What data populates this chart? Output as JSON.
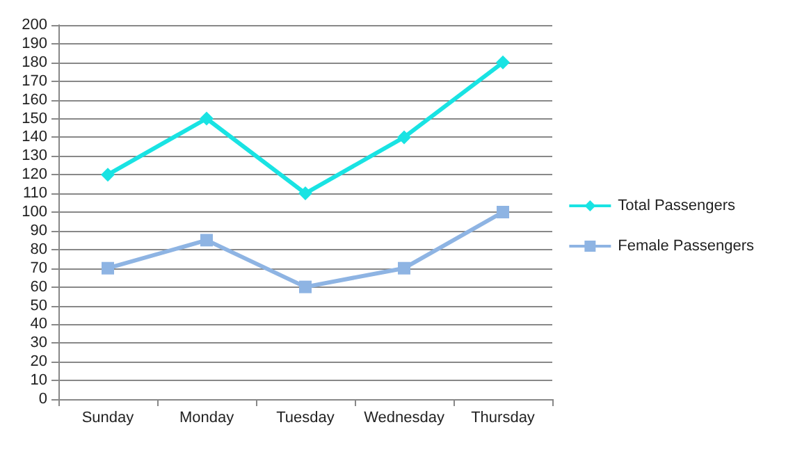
{
  "chart_data": {
    "type": "line",
    "categories": [
      "Sunday",
      "Monday",
      "Tuesday",
      "Wednesday",
      "Thursday"
    ],
    "series": [
      {
        "name": "Total Passengers",
        "color": "#19e3e3",
        "values": [
          120,
          150,
          110,
          140,
          180
        ],
        "marker": "diamond"
      },
      {
        "name": "Female Passengers",
        "color": "#8eb4e3",
        "values": [
          70,
          85,
          60,
          70,
          100
        ],
        "marker": "square"
      }
    ],
    "ylim": [
      0,
      200
    ],
    "yticks": [
      0,
      10,
      20,
      30,
      40,
      50,
      60,
      70,
      80,
      90,
      100,
      110,
      120,
      130,
      140,
      150,
      160,
      170,
      180,
      190,
      200
    ],
    "grid": "y",
    "legend": "right",
    "line_style": "solid"
  }
}
